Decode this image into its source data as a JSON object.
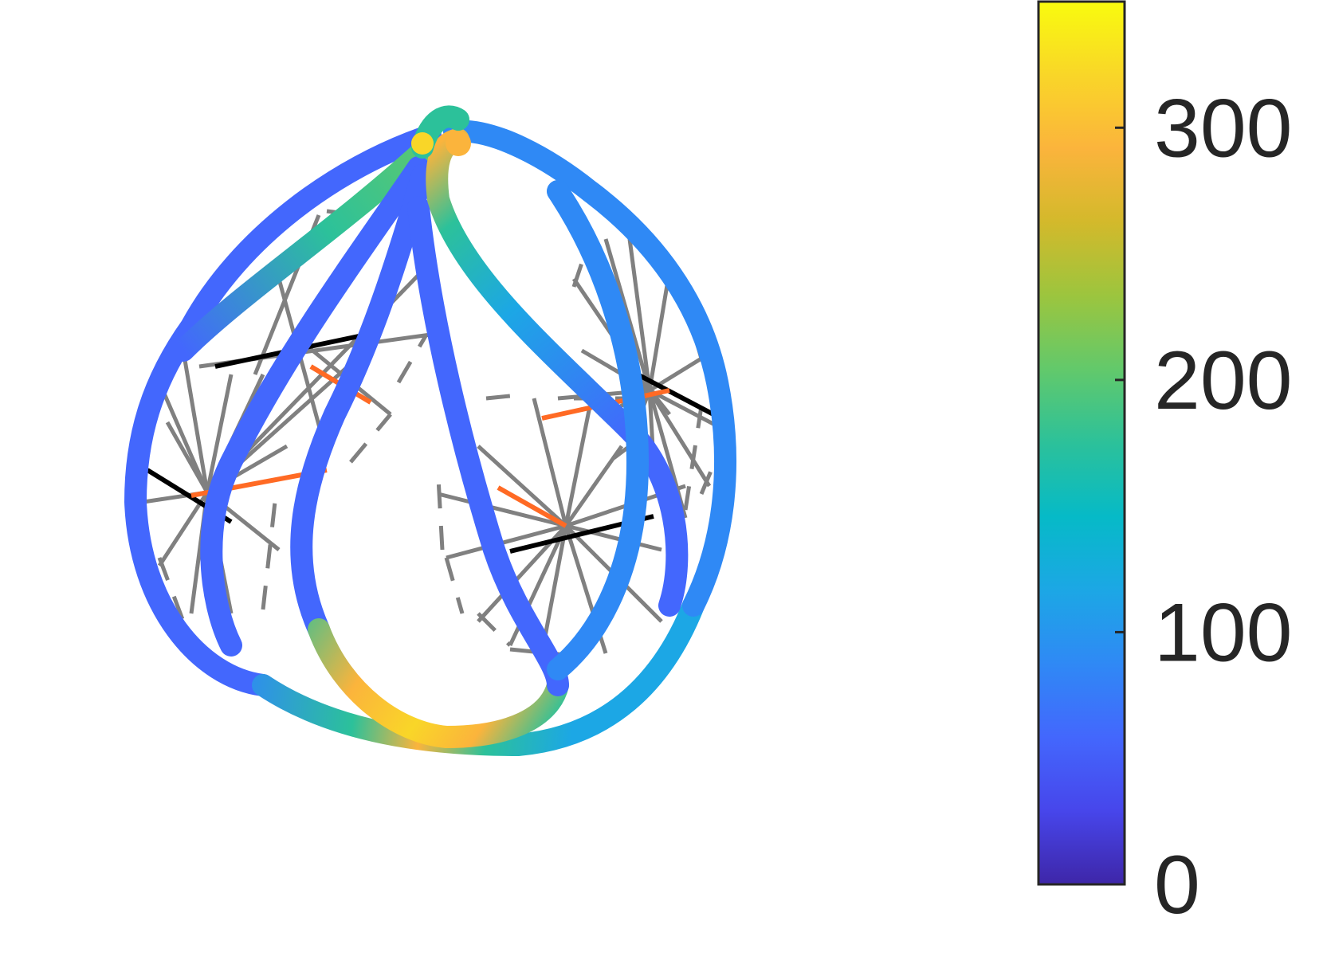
{
  "colorbar": {
    "colormap": "parula",
    "range": [
      0,
      350
    ],
    "ticks": [
      {
        "value": 0,
        "label": "0"
      },
      {
        "value": 100,
        "label": "100"
      },
      {
        "value": 200,
        "label": "200"
      },
      {
        "value": 300,
        "label": "300"
      }
    ],
    "stops": [
      "#3e26a8",
      "#4746eb",
      "#4367fd",
      "#2f89f5",
      "#1ca7e5",
      "#06bac7",
      "#2cc19a",
      "#62c96b",
      "#9cc53e",
      "#d3b92b",
      "#fbb43c",
      "#f9d628",
      "#f9fb0e"
    ]
  },
  "colors": {
    "wire": "#808080",
    "axis": "#000000",
    "accent": "#ff6a24"
  }
}
